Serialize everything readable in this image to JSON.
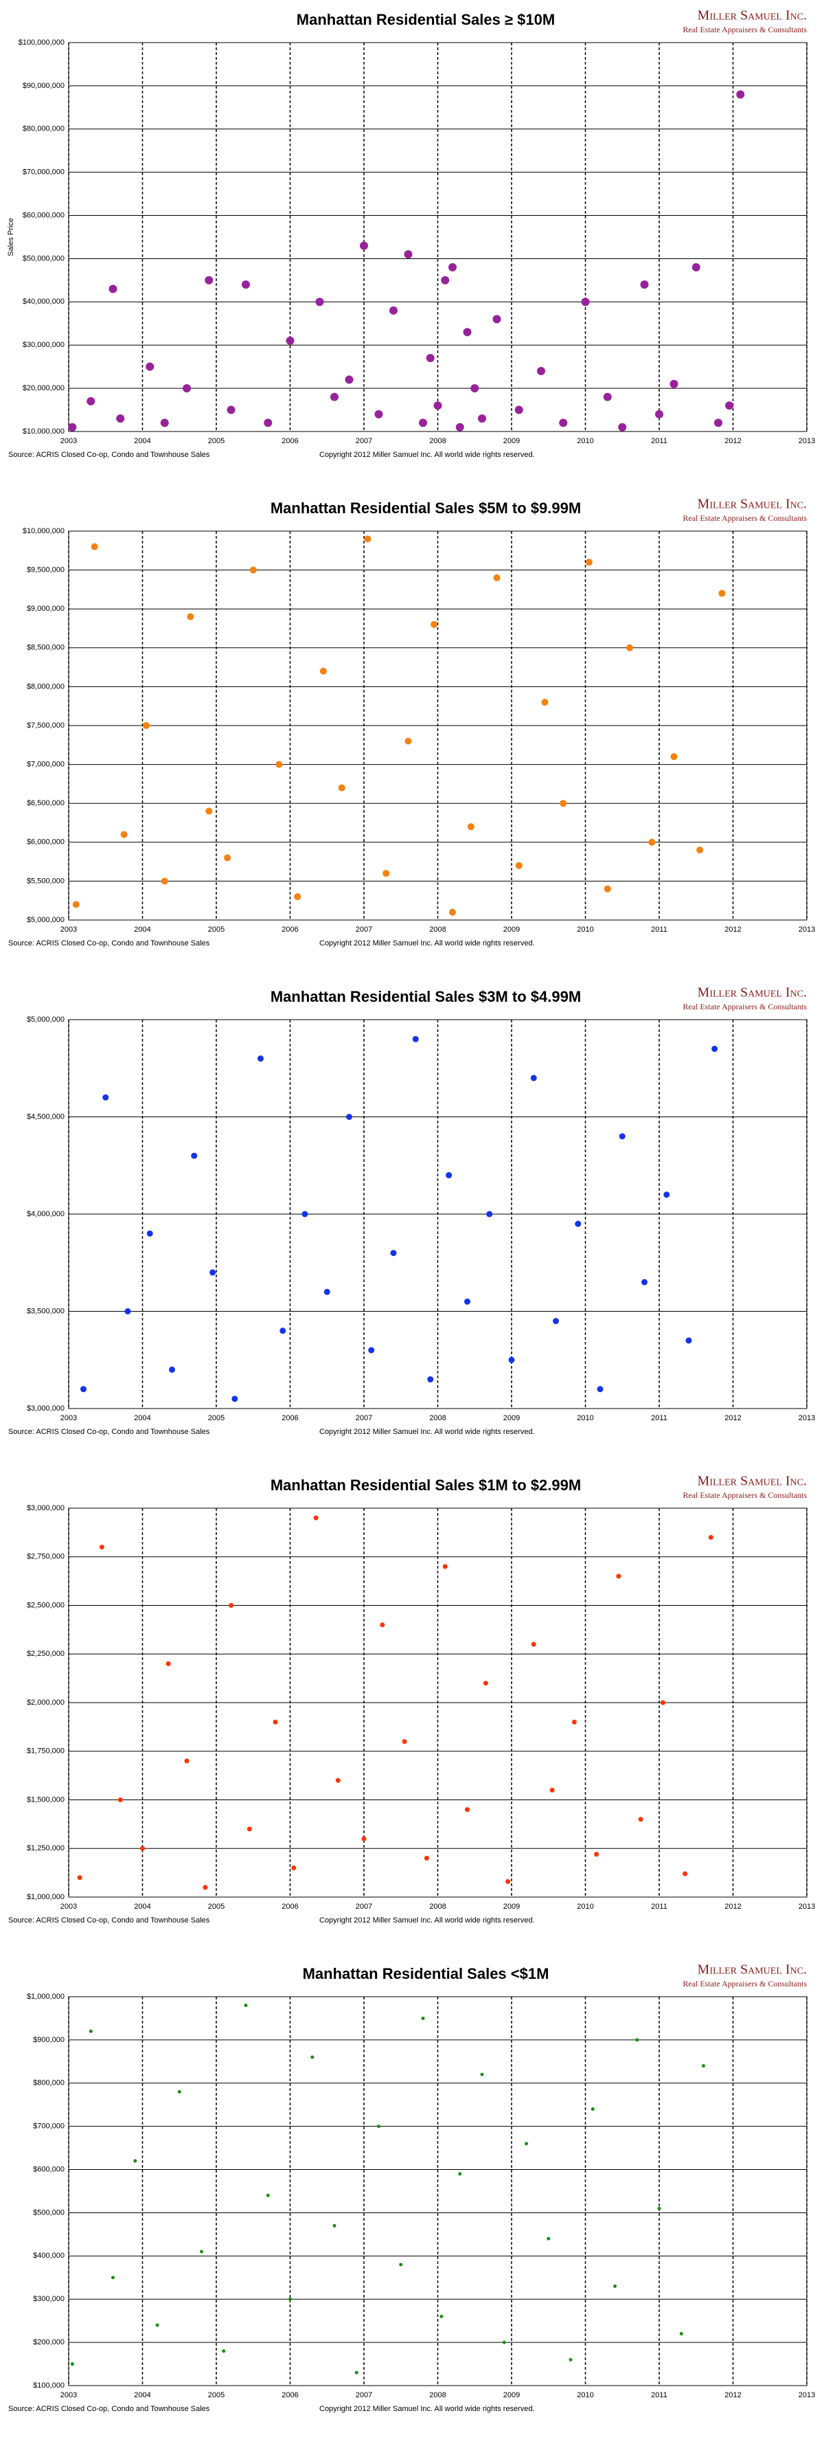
{
  "logo": {
    "name": "Miller Samuel Inc.",
    "tagline": "Real Estate Appraisers & Consultants"
  },
  "chart_data": [
    {
      "type": "scatter",
      "title": "Manhattan Residential Sales ≥ $10M",
      "ylabel": "Sales Price",
      "source": "Source: ACRIS Closed Co-op, Condo and Townhouse Sales",
      "copyright": "Copyright 2012 Miller Samuel Inc.  All world wide rights reserved.",
      "color": "#98229b",
      "grid": true,
      "xlim": [
        2003,
        2013
      ],
      "xticks": [
        2003,
        2004,
        2005,
        2006,
        2007,
        2008,
        2009,
        2010,
        2011,
        2012,
        2013
      ],
      "ylim": [
        10000000,
        100000000
      ],
      "yticks": [
        {
          "value": 10000000,
          "label": "$10,000,000"
        },
        {
          "value": 20000000,
          "label": "$20,000,000"
        },
        {
          "value": 30000000,
          "label": "$30,000,000"
        },
        {
          "value": 40000000,
          "label": "$40,000,000"
        },
        {
          "value": 50000000,
          "label": "$50,000,000"
        },
        {
          "value": 60000000,
          "label": "$60,000,000"
        },
        {
          "value": 70000000,
          "label": "$70,000,000"
        },
        {
          "value": 80000000,
          "label": "$80,000,000"
        },
        {
          "value": 90000000,
          "label": "$90,000,000"
        },
        {
          "value": 100000000,
          "label": "$100,000,000"
        }
      ],
      "x": [
        2003.05,
        2003.3,
        2003.6,
        2003.7,
        2004.1,
        2004.3,
        2004.6,
        2004.9,
        2005.2,
        2005.4,
        2005.7,
        2006.0,
        2006.4,
        2006.6,
        2006.8,
        2007.0,
        2007.2,
        2007.4,
        2007.6,
        2007.8,
        2007.9,
        2008.0,
        2008.1,
        2008.2,
        2008.3,
        2008.4,
        2008.5,
        2008.6,
        2008.8,
        2009.1,
        2009.4,
        2009.7,
        2010.0,
        2010.3,
        2010.5,
        2010.8,
        2011.0,
        2011.2,
        2011.5,
        2011.8,
        2011.95,
        2012.1
      ],
      "values": [
        11000000,
        17000000,
        43000000,
        13000000,
        25000000,
        12000000,
        20000000,
        45000000,
        15000000,
        44000000,
        12000000,
        31000000,
        40000000,
        18000000,
        22000000,
        53000000,
        14000000,
        38000000,
        51000000,
        12000000,
        27000000,
        16000000,
        45000000,
        48000000,
        11000000,
        33000000,
        20000000,
        13000000,
        36000000,
        15000000,
        24000000,
        12000000,
        40000000,
        18000000,
        11000000,
        44000000,
        14000000,
        21000000,
        48000000,
        12000000,
        16000000,
        88000000
      ]
    },
    {
      "type": "scatter",
      "title": "Manhattan Residential Sales $5M to $9.99M",
      "source": "Source: ACRIS Closed Co-op, Condo and Townhouse Sales",
      "copyright": "Copyright 2012 Miller Samuel Inc.  All world wide rights reserved.",
      "color": "#f5820f",
      "grid": true,
      "xlim": [
        2003,
        2013
      ],
      "xticks": [
        2003,
        2004,
        2005,
        2006,
        2007,
        2008,
        2009,
        2010,
        2011,
        2012,
        2013
      ],
      "ylim": [
        5000000,
        10000000
      ],
      "yticks": [
        {
          "value": 5000000,
          "label": "$5,000,000"
        },
        {
          "value": 5500000,
          "label": "$5,500,000"
        },
        {
          "value": 6000000,
          "label": "$6,000,000"
        },
        {
          "value": 6500000,
          "label": "$6,500,000"
        },
        {
          "value": 7000000,
          "label": "$7,000,000"
        },
        {
          "value": 7500000,
          "label": "$7,500,000"
        },
        {
          "value": 8000000,
          "label": "$8,000,000"
        },
        {
          "value": 8500000,
          "label": "$8,500,000"
        },
        {
          "value": 9000000,
          "label": "$9,000,000"
        },
        {
          "value": 9500000,
          "label": "$9,500,000"
        },
        {
          "value": 10000000,
          "label": "$10,000,000"
        }
      ],
      "x": [
        2003.1,
        2003.35,
        2003.75,
        2004.05,
        2004.3,
        2004.65,
        2004.9,
        2005.15,
        2005.5,
        2005.85,
        2006.1,
        2006.45,
        2006.7,
        2007.05,
        2007.3,
        2007.6,
        2007.95,
        2008.2,
        2008.45,
        2008.8,
        2009.1,
        2009.45,
        2009.7,
        2010.05,
        2010.3,
        2010.6,
        2010.9,
        2011.2,
        2011.55,
        2011.85
      ],
      "values": [
        5200000,
        9800000,
        6100000,
        7500000,
        5500000,
        8900000,
        6400000,
        5800000,
        9500000,
        7000000,
        5300000,
        8200000,
        6700000,
        9900000,
        5600000,
        7300000,
        8800000,
        5100000,
        6200000,
        9400000,
        5700000,
        7800000,
        6500000,
        9600000,
        5400000,
        8500000,
        6000000,
        7100000,
        5900000,
        9200000
      ]
    },
    {
      "type": "scatter",
      "title": "Manhattan Residential Sales $3M to $4.99M",
      "source": "Source: ACRIS Closed Co-op, Condo and Townhouse Sales",
      "copyright": "Copyright 2012 Miller Samuel Inc.  All world wide rights reserved.",
      "color": "#1534e8",
      "grid": true,
      "xlim": [
        2003,
        2013
      ],
      "xticks": [
        2003,
        2004,
        2005,
        2006,
        2007,
        2008,
        2009,
        2010,
        2011,
        2012,
        2013
      ],
      "ylim": [
        3000000,
        5000000
      ],
      "yticks": [
        {
          "value": 3000000,
          "label": "$3,000,000"
        },
        {
          "value": 3500000,
          "label": "$3,500,000"
        },
        {
          "value": 4000000,
          "label": "$4,000,000"
        },
        {
          "value": 4500000,
          "label": "$4,500,000"
        },
        {
          "value": 5000000,
          "label": "$5,000,000"
        }
      ],
      "x": [
        2003.2,
        2003.5,
        2003.8,
        2004.1,
        2004.4,
        2004.7,
        2004.95,
        2005.25,
        2005.6,
        2005.9,
        2006.2,
        2006.5,
        2006.8,
        2007.1,
        2007.4,
        2007.7,
        2007.9,
        2008.15,
        2008.4,
        2008.7,
        2009.0,
        2009.3,
        2009.6,
        2009.9,
        2010.2,
        2010.5,
        2010.8,
        2011.1,
        2011.4,
        2011.75
      ],
      "values": [
        3100000,
        4600000,
        3500000,
        3900000,
        3200000,
        4300000,
        3700000,
        3050000,
        4800000,
        3400000,
        4000000,
        3600000,
        4500000,
        3300000,
        3800000,
        4900000,
        3150000,
        4200000,
        3550000,
        4000000,
        3250000,
        4700000,
        3450000,
        3950000,
        3100000,
        4400000,
        3650000,
        4100000,
        3350000,
        4850000
      ]
    },
    {
      "type": "scatter",
      "title": "Manhattan Residential Sales $1M to $2.99M",
      "source": "Source: ACRIS Closed Co-op, Condo and Townhouse Sales",
      "copyright": "Copyright 2012 Miller Samuel Inc.  All world wide rights reserved.",
      "color": "#ff3300",
      "grid": true,
      "xlim": [
        2003,
        2013
      ],
      "xticks": [
        2003,
        2004,
        2005,
        2006,
        2007,
        2008,
        2009,
        2010,
        2011,
        2012,
        2013
      ],
      "ylim": [
        1000000,
        3000000
      ],
      "yticks": [
        {
          "value": 1000000,
          "label": "$1,000,000"
        },
        {
          "value": 1250000,
          "label": "$1,250,000"
        },
        {
          "value": 1500000,
          "label": "$1,500,000"
        },
        {
          "value": 1750000,
          "label": "$1,750,000"
        },
        {
          "value": 2000000,
          "label": "$2,000,000"
        },
        {
          "value": 2250000,
          "label": "$2,250,000"
        },
        {
          "value": 2500000,
          "label": "$2,500,000"
        },
        {
          "value": 2750000,
          "label": "$2,750,000"
        },
        {
          "value": 3000000,
          "label": "$3,000,000"
        }
      ],
      "x": [
        2003.15,
        2003.45,
        2003.7,
        2004.0,
        2004.35,
        2004.6,
        2004.85,
        2005.2,
        2005.45,
        2005.8,
        2006.05,
        2006.35,
        2006.65,
        2007.0,
        2007.25,
        2007.55,
        2007.85,
        2008.1,
        2008.4,
        2008.65,
        2008.95,
        2009.3,
        2009.55,
        2009.85,
        2010.15,
        2010.45,
        2010.75,
        2011.05,
        2011.35,
        2011.7
      ],
      "values": [
        1100000,
        2800000,
        1500000,
        1250000,
        2200000,
        1700000,
        1050000,
        2500000,
        1350000,
        1900000,
        1150000,
        2950000,
        1600000,
        1300000,
        2400000,
        1800000,
        1200000,
        2700000,
        1450000,
        2100000,
        1080000,
        2300000,
        1550000,
        1900000,
        1220000,
        2650000,
        1400000,
        2000000,
        1120000,
        2850000
      ]
    },
    {
      "type": "scatter",
      "title": "Manhattan Residential Sales <$1M",
      "source": "Source: ACRIS Closed Co-op, Condo and Townhouse Sales",
      "copyright": "Copyright 2012 Miller Samuel Inc.  All world wide rights reserved.",
      "color": "#1a8c14",
      "grid": true,
      "xlim": [
        2003,
        2013
      ],
      "xticks": [
        2003,
        2004,
        2005,
        2006,
        2007,
        2008,
        2009,
        2010,
        2011,
        2012,
        2013
      ],
      "ylim": [
        100000,
        1000000
      ],
      "yticks": [
        {
          "value": 100000,
          "label": "$100,000"
        },
        {
          "value": 200000,
          "label": "$200,000"
        },
        {
          "value": 300000,
          "label": "$300,000"
        },
        {
          "value": 400000,
          "label": "$400,000"
        },
        {
          "value": 500000,
          "label": "$500,000"
        },
        {
          "value": 600000,
          "label": "$600,000"
        },
        {
          "value": 700000,
          "label": "$700,000"
        },
        {
          "value": 800000,
          "label": "$800,000"
        },
        {
          "value": 900000,
          "label": "$900,000"
        },
        {
          "value": 1000000,
          "label": "$1,000,000"
        }
      ],
      "x": [
        2003.05,
        2003.3,
        2003.6,
        2003.9,
        2004.2,
        2004.5,
        2004.8,
        2005.1,
        2005.4,
        2005.7,
        2006.0,
        2006.3,
        2006.6,
        2006.9,
        2007.2,
        2007.5,
        2007.8,
        2008.05,
        2008.3,
        2008.6,
        2008.9,
        2009.2,
        2009.5,
        2009.8,
        2010.1,
        2010.4,
        2010.7,
        2011.0,
        2011.3,
        2011.6
      ],
      "values": [
        150000,
        920000,
        350000,
        620000,
        240000,
        780000,
        410000,
        180000,
        980000,
        540000,
        300000,
        860000,
        470000,
        130000,
        700000,
        380000,
        950000,
        260000,
        590000,
        820000,
        200000,
        660000,
        440000,
        160000,
        740000,
        330000,
        900000,
        510000,
        220000,
        840000
      ]
    }
  ]
}
